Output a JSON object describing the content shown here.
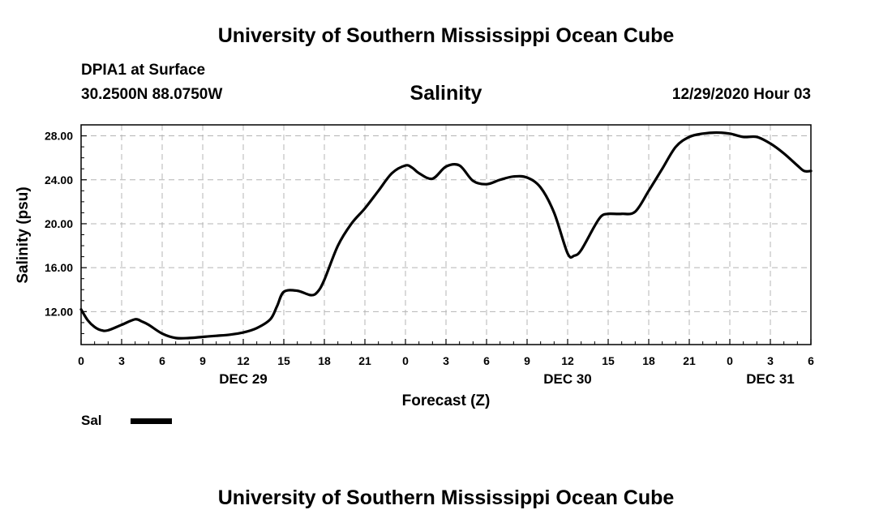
{
  "header": {
    "top_title": "University of Southern Mississippi Ocean Cube",
    "station_name": "DPIA1 at Surface",
    "station_coords": "30.2500N 88.0750W",
    "valid_time": "12/29/2020 Hour 03"
  },
  "footer": {
    "bottom_title": "University of Southern Mississippi Ocean Cube"
  },
  "legend": {
    "label": "Sal",
    "color": "#000000"
  },
  "chart_data": {
    "type": "line",
    "title": "Salinity",
    "xlabel": "Forecast (Z)",
    "ylabel": "Salinity (psu)",
    "xlim": [
      0,
      54
    ],
    "ylim": [
      9.0,
      29.0
    ],
    "grid": true,
    "x_ticks": [
      0,
      3,
      6,
      9,
      12,
      15,
      18,
      21,
      24,
      27,
      30,
      33,
      36,
      39,
      42,
      45,
      48,
      51,
      54
    ],
    "x_tick_labels": [
      "0",
      "3",
      "6",
      "9",
      "12",
      "15",
      "18",
      "21",
      "0",
      "3",
      "6",
      "9",
      "12",
      "15",
      "18",
      "21",
      "0",
      "3",
      "6"
    ],
    "y_ticks": [
      12,
      16,
      20,
      24,
      28
    ],
    "y_tick_labels": [
      "12.00",
      "16.00",
      "20.00",
      "24.00",
      "28.00"
    ],
    "date_labels": [
      {
        "x": 12,
        "text": "DEC 29"
      },
      {
        "x": 36,
        "text": "DEC 30"
      },
      {
        "x": 51,
        "text": "DEC 31"
      }
    ],
    "series": [
      {
        "name": "Sal",
        "color": "#000000",
        "x": [
          0,
          0.5,
          1,
          1.5,
          2,
          3,
          4,
          4.5,
          5,
          6,
          7,
          8,
          9,
          10,
          11,
          12,
          13,
          14,
          14.5,
          15,
          16,
          17,
          17.5,
          18,
          19,
          20,
          21,
          22,
          23,
          24,
          24.5,
          25,
          26,
          27,
          28,
          29,
          30,
          31,
          32,
          33,
          34,
          35,
          36,
          36.5,
          37,
          38,
          38.5,
          39,
          40,
          41,
          42,
          43,
          44,
          45,
          46,
          47,
          48,
          49,
          50,
          51,
          52,
          53,
          53.5,
          54
        ],
        "y": [
          12.2,
          11.2,
          10.6,
          10.3,
          10.3,
          10.8,
          11.3,
          11.1,
          10.8,
          10.0,
          9.6,
          9.6,
          9.7,
          9.8,
          9.9,
          10.1,
          10.5,
          11.3,
          12.5,
          13.8,
          13.9,
          13.5,
          13.8,
          14.9,
          18.0,
          20.0,
          21.4,
          23.0,
          24.6,
          25.3,
          25.1,
          24.6,
          24.1,
          25.2,
          25.3,
          23.9,
          23.6,
          24.0,
          24.3,
          24.2,
          23.3,
          21.0,
          17.3,
          17.1,
          17.6,
          19.8,
          20.7,
          20.9,
          20.9,
          21.1,
          23.0,
          25.0,
          27.0,
          27.9,
          28.2,
          28.3,
          28.2,
          27.9,
          27.9,
          27.3,
          26.4,
          25.3,
          24.8,
          24.8
        ]
      }
    ]
  }
}
